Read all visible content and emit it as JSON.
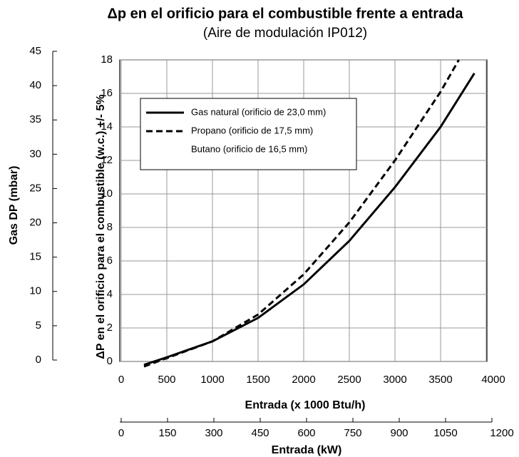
{
  "chart_data": {
    "type": "line",
    "title": "Δp en el orificio para el combustible frente a entrada",
    "subtitle": "(Aire de modulación IP012)",
    "x_label": "Entrada (x 1000 Btu/h)",
    "x2_label": "Entrada (kW)",
    "y_label": "ΔP en el orificio para el combustible (w.c.) +/- 5%",
    "y2_label": "Gas DP (mbar)",
    "xlim": [
      0,
      4000
    ],
    "xticks": [
      0,
      500,
      1000,
      1500,
      2000,
      2500,
      3000,
      3500,
      4000
    ],
    "x2lim": [
      0,
      1200
    ],
    "x2ticks": [
      0,
      150,
      300,
      450,
      600,
      750,
      900,
      1050,
      1200
    ],
    "ylim": [
      0,
      18
    ],
    "yticks": [
      0,
      2,
      4,
      6,
      8,
      10,
      12,
      14,
      16,
      18
    ],
    "y2lim": [
      0,
      45
    ],
    "y2ticks": [
      0,
      5,
      10,
      15,
      20,
      25,
      30,
      35,
      40,
      45
    ],
    "grid": true,
    "series": [
      {
        "name": "Gas natural (orificio de 23,0 mm)",
        "color": "#000000",
        "dash": "solid",
        "x": [
          250,
          500,
          1000,
          1500,
          2000,
          2500,
          3000,
          3500,
          3870
        ],
        "values": [
          -0.2,
          0.25,
          1.2,
          2.6,
          4.6,
          7.2,
          10.4,
          14.0,
          17.2
        ]
      },
      {
        "name": "Propano (orificio de 17,5 mm)",
        "color": "#000000",
        "dash": "dashed",
        "x": [
          250,
          500,
          1000,
          1500,
          2000,
          2500,
          3000,
          3500,
          3700
        ],
        "values": [
          -0.3,
          0.2,
          1.2,
          2.8,
          5.2,
          8.3,
          12.0,
          16.1,
          18.0
        ]
      },
      {
        "name": "Butano (orificio de 16,5 mm)"
      }
    ]
  }
}
